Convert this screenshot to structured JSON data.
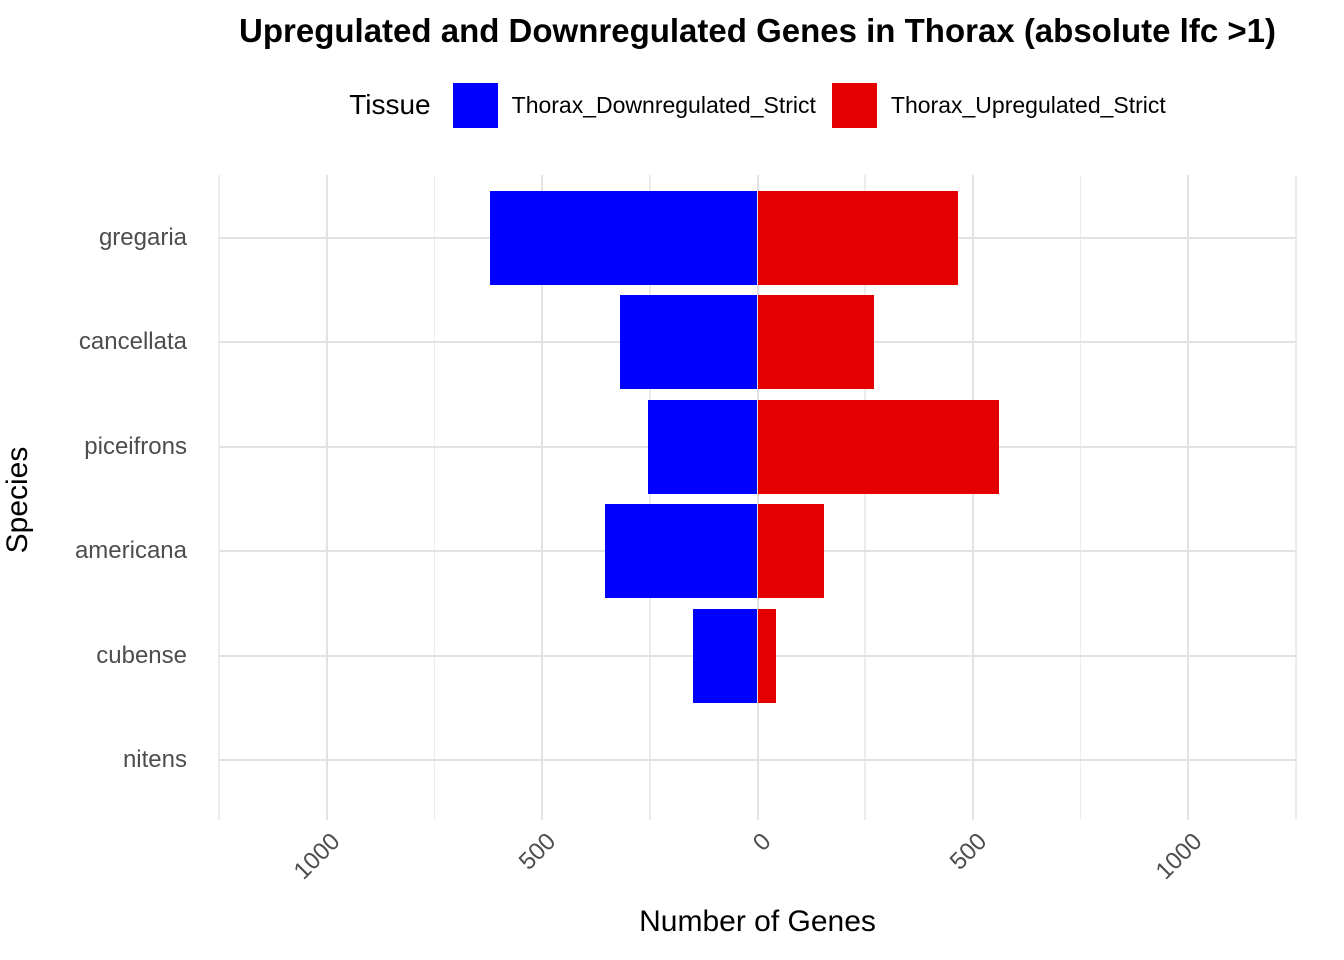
{
  "title": "Upregulated and Downregulated Genes in Thorax (absolute lfc >1)",
  "legend": {
    "title": "Tissue",
    "entries": [
      {
        "label": "Thorax_Downregulated_Strict",
        "color": "#0000ff"
      },
      {
        "label": "Thorax_Upregulated_Strict",
        "color": "#e40000"
      }
    ]
  },
  "chart_data": {
    "type": "bar",
    "subtype": "horizontal-diverging",
    "title": "Upregulated and Downregulated Genes in Thorax (absolute lfc >1)",
    "xlabel": "Number of Genes",
    "ylabel": "Species",
    "categories": [
      "gregaria",
      "cancellata",
      "piceifrons",
      "americana",
      "cubense",
      "nitens"
    ],
    "series": [
      {
        "name": "Thorax_Downregulated_Strict",
        "direction": "left",
        "color": "#0000ff",
        "values": [
          620,
          320,
          255,
          355,
          150,
          0
        ]
      },
      {
        "name": "Thorax_Upregulated_Strict",
        "direction": "right",
        "color": "#e40000",
        "values": [
          465,
          270,
          560,
          155,
          42,
          0
        ]
      }
    ],
    "xlim": [
      -1250,
      1250
    ],
    "x_ticks": [
      -1000,
      -500,
      0,
      500,
      1000
    ],
    "x_tick_labels": [
      "1000",
      "500",
      "0",
      "500",
      "1000"
    ],
    "x_minor_ticks": [
      -1250,
      -750,
      -250,
      250,
      750,
      1250
    ],
    "grid": true,
    "legend_position": "top",
    "background": "#ffffff",
    "grid_color_major": "#e2e2e2",
    "grid_color_minor": "#ececec",
    "axis_text_color": "#4d4d4d"
  }
}
